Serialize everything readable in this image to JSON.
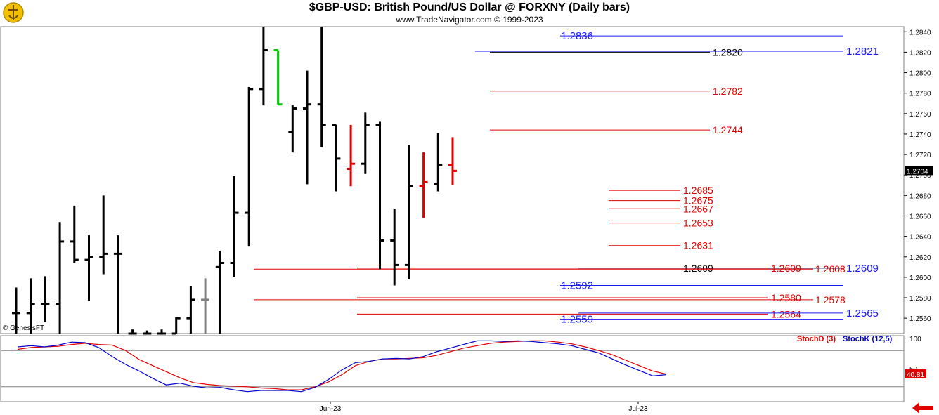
{
  "header": {
    "title": "$GBP-USD:  British Pound/US Dollar @ FORXNY  (Daily bars)",
    "subtitle": "www.TradeNavigator.com © 1999-2023",
    "watermark": "© GenesisFT",
    "logo_icon": "trade-navigator-logo-icon",
    "back_icon": "red-left-arrow-icon"
  },
  "chart_data": [
    {
      "type": "ohlc",
      "name": "price",
      "y_axis": {
        "min": 1.2545,
        "max": 1.2845,
        "ticks": [
          "1.2840",
          "1.2820",
          "1.2800",
          "1.2780",
          "1.2760",
          "1.2740",
          "1.2720",
          "1.2700",
          "1.2680",
          "1.2660",
          "1.2640",
          "1.2620",
          "1.2600",
          "1.2580",
          "1.2560"
        ],
        "side": "right"
      },
      "x_labels": [
        "Jun-23",
        "Jul-23"
      ],
      "last_price_label": "1.2704",
      "bars": [
        {
          "o": 1.2565,
          "h": 1.259,
          "l": 1.2545,
          "c": 1.2565,
          "color": "#000000"
        },
        {
          "o": 1.2565,
          "h": 1.2599,
          "l": 1.2545,
          "c": 1.2574,
          "color": "#000000"
        },
        {
          "o": 1.2574,
          "h": 1.2601,
          "l": 1.2556,
          "c": 1.2574,
          "color": "#000000"
        },
        {
          "o": 1.2574,
          "h": 1.2654,
          "l": 1.2545,
          "c": 1.2635,
          "color": "#000000"
        },
        {
          "o": 1.2635,
          "h": 1.267,
          "l": 1.2614,
          "c": 1.2617,
          "color": "#000000"
        },
        {
          "o": 1.2617,
          "h": 1.2641,
          "l": 1.2577,
          "c": 1.262,
          "color": "#000000"
        },
        {
          "o": 1.262,
          "h": 1.268,
          "l": 1.2603,
          "c": 1.2623,
          "color": "#000000"
        },
        {
          "o": 1.2623,
          "h": 1.2641,
          "l": 1.2545,
          "c": 1.2623,
          "color": "#000000"
        },
        {
          "o": 1.2545,
          "h": 1.2549,
          "l": 1.2545,
          "c": 1.2545,
          "color": "#000000"
        },
        {
          "o": 1.2545,
          "h": 1.2548,
          "l": 1.2545,
          "c": 1.2545,
          "color": "#000000"
        },
        {
          "o": 1.2545,
          "h": 1.2549,
          "l": 1.2545,
          "c": 1.2545,
          "color": "#000000"
        },
        {
          "o": 1.2545,
          "h": 1.2561,
          "l": 1.2545,
          "c": 1.256,
          "color": "#000000"
        },
        {
          "o": 1.256,
          "h": 1.2591,
          "l": 1.2545,
          "c": 1.2578,
          "color": "#000000"
        },
        {
          "o": 1.2578,
          "h": 1.2599,
          "l": 1.2545,
          "c": 1.2578,
          "color": "#808080"
        },
        {
          "o": 1.261,
          "h": 1.2626,
          "l": 1.2545,
          "c": 1.2614,
          "color": "#000000"
        },
        {
          "o": 1.2614,
          "h": 1.2699,
          "l": 1.26,
          "c": 1.2663,
          "color": "#000000"
        },
        {
          "o": 1.2663,
          "h": 1.2786,
          "l": 1.263,
          "c": 1.2784,
          "color": "#000000"
        },
        {
          "o": 1.2784,
          "h": 1.2845,
          "l": 1.2768,
          "c": 1.2822,
          "color": "#000000"
        },
        {
          "o": 1.2822,
          "h": 1.2822,
          "l": 1.2769,
          "c": 1.2769,
          "color": "#00cc00"
        },
        {
          "o": 1.2742,
          "h": 1.2768,
          "l": 1.2722,
          "c": 1.2765,
          "color": "#000000"
        },
        {
          "o": 1.2765,
          "h": 1.2802,
          "l": 1.2691,
          "c": 1.2769,
          "color": "#000000"
        },
        {
          "o": 1.2769,
          "h": 1.2845,
          "l": 1.2727,
          "c": 1.2749,
          "color": "#000000"
        },
        {
          "o": 1.2749,
          "h": 1.2749,
          "l": 1.2684,
          "c": 1.2716,
          "color": "#000000"
        },
        {
          "o": 1.2706,
          "h": 1.2749,
          "l": 1.2689,
          "c": 1.2711,
          "color": "#e00000"
        },
        {
          "o": 1.2711,
          "h": 1.2761,
          "l": 1.2701,
          "c": 1.2749,
          "color": "#000000"
        },
        {
          "o": 1.2749,
          "h": 1.2752,
          "l": 1.2608,
          "c": 1.2636,
          "color": "#000000"
        },
        {
          "o": 1.2636,
          "h": 1.2667,
          "l": 1.2592,
          "c": 1.2612,
          "color": "#000000"
        },
        {
          "o": 1.2612,
          "h": 1.2729,
          "l": 1.2598,
          "c": 1.2689,
          "color": "#000000"
        },
        {
          "o": 1.2689,
          "h": 1.2722,
          "l": 1.2658,
          "c": 1.2693,
          "color": "#e00000"
        },
        {
          "o": 1.2691,
          "h": 1.2741,
          "l": 1.2684,
          "c": 1.271,
          "color": "#000000"
        },
        {
          "o": 1.271,
          "h": 1.2737,
          "l": 1.269,
          "c": 1.2704,
          "color": "#e00000"
        }
      ],
      "price_lines": [
        {
          "label": "1.2836",
          "value": 1.2836,
          "label_side": "left",
          "color": "#1a1aff"
        },
        {
          "label": "1.2821",
          "value": 1.2821,
          "label_side": "right",
          "color": "#1a1aff"
        },
        {
          "label": "1.2820",
          "value": 1.282,
          "label_side": "mid",
          "color": "#000000"
        },
        {
          "label": "1.2782",
          "value": 1.2782,
          "label_side": "mid",
          "color": "#e00000"
        },
        {
          "label": "1.2744",
          "value": 1.2744,
          "label_side": "mid",
          "color": "#e00000"
        },
        {
          "label": "1.2685",
          "value": 1.2685,
          "label_side": "near",
          "color": "#e00000"
        },
        {
          "label": "1.2675",
          "value": 1.2675,
          "label_side": "near",
          "color": "#e00000"
        },
        {
          "label": "1.2667",
          "value": 1.2667,
          "label_side": "near",
          "color": "#e00000"
        },
        {
          "label": "1.2653",
          "value": 1.2653,
          "label_side": "near",
          "color": "#e00000"
        },
        {
          "label": "1.2631",
          "value": 1.2631,
          "label_side": "near",
          "color": "#e00000"
        },
        {
          "label": "1.2609",
          "value": 1.2609,
          "label_side": "right",
          "color": "#1a1aff"
        },
        {
          "label": "1.2609",
          "value": 1.2609,
          "label_side": "near",
          "color": "#000000"
        },
        {
          "label": "1.2609",
          "value": 1.2609,
          "label_side": "far",
          "color": "#e00000"
        },
        {
          "label": "1.2608",
          "value": 1.2608,
          "label_side": "far2",
          "color": "#e00000"
        },
        {
          "label": "1.2592",
          "value": 1.2592,
          "label_side": "left",
          "color": "#1a1aff"
        },
        {
          "label": "1.2580",
          "value": 1.258,
          "label_side": "far",
          "color": "#e00000"
        },
        {
          "label": "1.2578",
          "value": 1.2578,
          "label_side": "far2",
          "color": "#e00000"
        },
        {
          "label": "1.2564",
          "value": 1.2564,
          "label_side": "far",
          "color": "#e00000"
        },
        {
          "label": "1.2565",
          "value": 1.2565,
          "label_side": "right",
          "color": "#1a1aff"
        },
        {
          "label": "1.2559",
          "value": 1.2559,
          "label_side": "left",
          "color": "#1a1aff"
        }
      ]
    },
    {
      "type": "line",
      "name": "stochastic",
      "y_axis": {
        "min": 0,
        "max": 100,
        "ticks": [
          "100",
          "50"
        ],
        "reference_lines": [
          80,
          20
        ]
      },
      "last_value_label": "40.81",
      "series": [
        {
          "name": "StochD (3)",
          "color": "#e00000",
          "values": [
            82,
            85,
            86,
            87,
            90,
            92,
            90,
            89,
            80,
            65,
            55,
            45,
            35,
            27,
            24,
            22,
            21,
            20,
            18,
            17,
            15,
            15,
            20,
            28,
            40,
            55,
            62,
            66,
            66,
            67,
            68,
            72,
            78,
            84,
            88,
            92,
            94,
            95,
            96,
            96,
            94,
            91,
            86,
            80,
            73,
            64,
            55,
            46,
            41
          ]
        },
        {
          "name": "StochK (12,5)",
          "color": "#0000cc",
          "values": [
            86,
            88,
            86,
            89,
            94,
            93,
            85,
            70,
            57,
            46,
            34,
            23,
            26,
            21,
            18,
            19,
            15,
            12,
            14,
            14,
            14,
            12,
            19,
            32,
            48,
            60,
            62,
            66,
            67,
            66,
            70,
            78,
            84,
            90,
            96,
            96,
            95,
            96,
            95,
            93,
            91,
            88,
            82,
            76,
            66,
            56,
            47,
            38,
            40
          ]
        }
      ]
    }
  ]
}
